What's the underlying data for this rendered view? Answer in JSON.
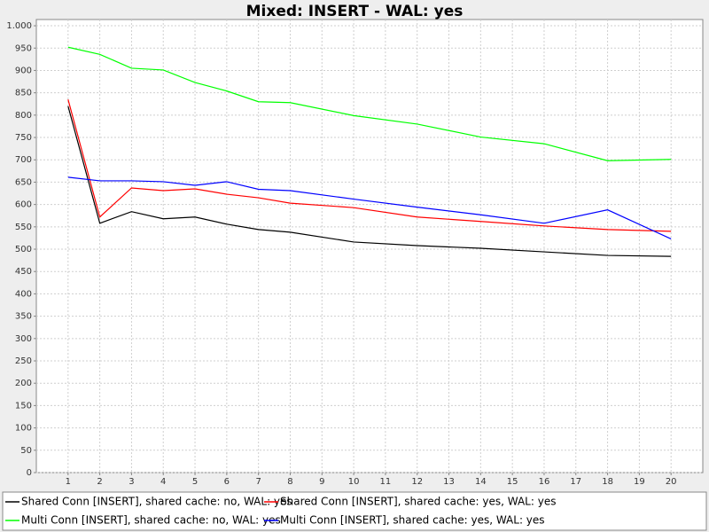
{
  "chart_data": {
    "type": "line",
    "title": "Mixed: INSERT - WAL: yes",
    "x": [
      1,
      2,
      3,
      4,
      5,
      6,
      7,
      8,
      10,
      12,
      14,
      16,
      18,
      20
    ],
    "series": [
      {
        "name": "Shared Conn [INSERT], shared cache: no, WAL: yes",
        "color": "#000000",
        "values": [
          820,
          558,
          584,
          568,
          572,
          556,
          544,
          538,
          516,
          508,
          502,
          494,
          486,
          484
        ]
      },
      {
        "name": "Shared Conn [INSERT], shared cache: yes, WAL: yes",
        "color": "#ff0000",
        "values": [
          835,
          572,
          637,
          631,
          635,
          623,
          615,
          603,
          593,
          572,
          562,
          552,
          544,
          540
        ]
      },
      {
        "name": "Multi Conn [INSERT], shared cache: no, WAL: yes",
        "color": "#00ff00",
        "values": [
          952,
          936,
          905,
          901,
          873,
          854,
          830,
          828,
          799,
          780,
          751,
          736,
          698,
          701
        ]
      },
      {
        "name": "Multi Conn [INSERT], shared cache: yes, WAL: yes",
        "color": "#0000ff",
        "values": [
          661,
          653,
          653,
          651,
          643,
          651,
          634,
          631,
          612,
          594,
          577,
          558,
          588,
          523
        ]
      }
    ],
    "xlim": [
      0,
      21
    ],
    "xticks": [
      1,
      2,
      3,
      4,
      5,
      6,
      7,
      8,
      9,
      10,
      11,
      12,
      13,
      14,
      15,
      16,
      17,
      18,
      19,
      20
    ],
    "ylim": [
      0,
      1014
    ],
    "yticks": [
      0,
      50,
      100,
      150,
      200,
      250,
      300,
      350,
      400,
      450,
      500,
      550,
      600,
      650,
      700,
      750,
      800,
      850,
      900,
      950,
      {
        "value": 1000,
        "label": "1.000"
      }
    ],
    "grid": true,
    "legend": "bottom"
  }
}
